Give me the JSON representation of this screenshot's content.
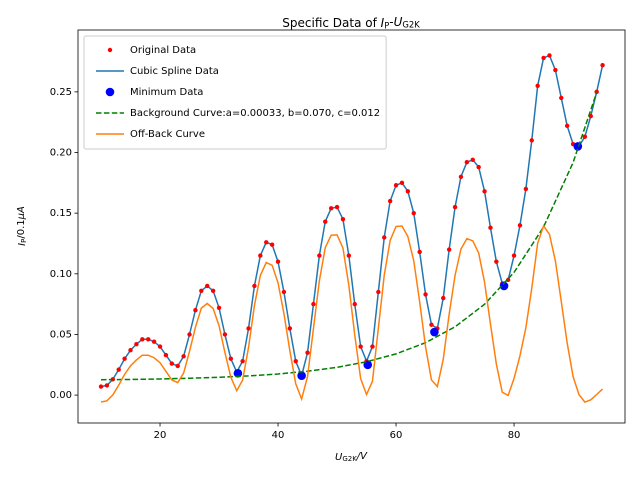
{
  "chart_data": {
    "type": "line",
    "title": [
      {
        "text": "Specific Data of "
      },
      {
        "text": "I",
        "style": "italic"
      },
      {
        "text": "P",
        "style": "sub"
      },
      {
        "text": "-"
      },
      {
        "text": "U",
        "style": "italic"
      },
      {
        "text": "G2K",
        "style": "sub"
      }
    ],
    "x_label": [
      {
        "text": "U",
        "style": "italic"
      },
      {
        "text": "G2K",
        "style": "sub"
      },
      {
        "text": "/V",
        "style": "italic"
      }
    ],
    "y_label": [
      {
        "text": "I",
        "style": "italic"
      },
      {
        "text": "P",
        "style": "sub"
      },
      {
        "text": "/0.1"
      },
      {
        "text": "μA",
        "style": "italic"
      }
    ],
    "xlim": [
      6.1,
      98.8
    ],
    "ylim": [
      -0.023,
      0.301
    ],
    "xticks": [
      20,
      40,
      60,
      80
    ],
    "yticks": [
      {
        "value": 0,
        "label": "0.00"
      },
      {
        "value": 0.05,
        "label": "0.05"
      },
      {
        "value": 0.1,
        "label": "0.10"
      },
      {
        "value": 0.15,
        "label": "0.15"
      },
      {
        "value": 0.2,
        "label": "0.20"
      },
      {
        "value": 0.25,
        "label": "0.25"
      }
    ],
    "legend": "upper left",
    "series": [
      {
        "name": "Original Data",
        "color": "#ff0000",
        "style": "dots",
        "x": [
          10,
          11,
          12,
          13,
          14,
          15,
          16,
          17,
          18,
          19,
          20,
          21,
          22,
          23,
          24,
          25,
          26,
          27,
          28,
          29,
          30,
          31,
          32,
          33,
          34,
          35,
          36,
          37,
          38,
          39,
          40,
          41,
          42,
          43,
          44,
          45,
          46,
          47,
          48,
          49,
          50,
          51,
          52,
          53,
          54,
          55,
          56,
          57,
          58,
          59,
          60,
          61,
          62,
          63,
          64,
          65,
          66,
          67,
          68,
          69,
          70,
          71,
          72,
          73,
          74,
          75,
          76,
          77,
          78,
          79,
          80,
          81,
          82,
          83,
          84,
          85,
          86,
          87,
          88,
          89,
          90,
          91,
          92,
          93,
          94,
          95
        ],
        "values": [
          0.007,
          0.008,
          0.013,
          0.021,
          0.03,
          0.037,
          0.042,
          0.046,
          0.046,
          0.044,
          0.04,
          0.033,
          0.026,
          0.024,
          0.032,
          0.05,
          0.07,
          0.086,
          0.09,
          0.086,
          0.072,
          0.05,
          0.03,
          0.019,
          0.028,
          0.055,
          0.09,
          0.115,
          0.126,
          0.124,
          0.11,
          0.085,
          0.055,
          0.028,
          0.016,
          0.035,
          0.075,
          0.115,
          0.143,
          0.154,
          0.155,
          0.145,
          0.115,
          0.075,
          0.04,
          0.028,
          0.04,
          0.085,
          0.13,
          0.16,
          0.173,
          0.175,
          0.168,
          0.15,
          0.118,
          0.083,
          0.058,
          0.055,
          0.08,
          0.12,
          0.155,
          0.18,
          0.192,
          0.194,
          0.188,
          0.168,
          0.138,
          0.11,
          0.092,
          0.095,
          0.115,
          0.14,
          0.17,
          0.21,
          0.255,
          0.278,
          0.28,
          0.268,
          0.245,
          0.222,
          0.207,
          0.205,
          0.213,
          0.23,
          0.25,
          0.272
        ]
      },
      {
        "name": "Cubic Spline Data",
        "color": "#1f77b4",
        "style": "line",
        "x": [
          10,
          11,
          12,
          13,
          14,
          15,
          16,
          17,
          18,
          19,
          20,
          21,
          22,
          23,
          24,
          25,
          26,
          27,
          28,
          29,
          30,
          31,
          32,
          33,
          34,
          35,
          36,
          37,
          38,
          39,
          40,
          41,
          42,
          43,
          44,
          45,
          46,
          47,
          48,
          49,
          50,
          51,
          52,
          53,
          54,
          55,
          56,
          57,
          58,
          59,
          60,
          61,
          62,
          63,
          64,
          65,
          66,
          67,
          68,
          69,
          70,
          71,
          72,
          73,
          74,
          75,
          76,
          77,
          78,
          79,
          80,
          81,
          82,
          83,
          84,
          85,
          86,
          87,
          88,
          89,
          90,
          91,
          92,
          93,
          94,
          95
        ],
        "values": [
          0.007,
          0.008,
          0.013,
          0.021,
          0.03,
          0.037,
          0.042,
          0.046,
          0.046,
          0.044,
          0.04,
          0.033,
          0.026,
          0.024,
          0.032,
          0.05,
          0.07,
          0.086,
          0.09,
          0.086,
          0.072,
          0.05,
          0.03,
          0.019,
          0.028,
          0.055,
          0.09,
          0.115,
          0.126,
          0.124,
          0.11,
          0.085,
          0.055,
          0.028,
          0.016,
          0.035,
          0.075,
          0.115,
          0.143,
          0.154,
          0.155,
          0.145,
          0.115,
          0.075,
          0.04,
          0.028,
          0.04,
          0.085,
          0.13,
          0.16,
          0.173,
          0.175,
          0.168,
          0.15,
          0.118,
          0.083,
          0.058,
          0.055,
          0.08,
          0.12,
          0.155,
          0.18,
          0.192,
          0.194,
          0.188,
          0.168,
          0.138,
          0.11,
          0.092,
          0.095,
          0.115,
          0.14,
          0.17,
          0.21,
          0.255,
          0.278,
          0.28,
          0.268,
          0.245,
          0.222,
          0.207,
          0.205,
          0.213,
          0.23,
          0.25,
          0.272
        ]
      },
      {
        "name": "Minimum Data",
        "color": "#0000ff",
        "style": "bigdots",
        "x": [
          33.2,
          44,
          55.2,
          66.5,
          78.3,
          90.8
        ],
        "values": [
          0.018,
          0.016,
          0.025,
          0.052,
          0.09,
          0.205
        ]
      },
      {
        "name": "Background Curve:a=0.00033, b=0.070, c=0.012",
        "color": "#008000",
        "style": "dashed",
        "x": [
          10,
          15,
          20,
          25,
          30,
          35,
          40,
          45,
          50,
          55,
          60,
          65,
          70,
          75,
          80,
          85,
          90,
          94
        ],
        "values": [
          0.0127,
          0.0129,
          0.0133,
          0.0139,
          0.0147,
          0.0158,
          0.0174,
          0.0197,
          0.0229,
          0.0275,
          0.034,
          0.0432,
          0.0563,
          0.0749,
          0.1012,
          0.1386,
          0.1917,
          0.2495
        ]
      },
      {
        "name": "Off-Back Curve",
        "color": "#ff7f0e",
        "style": "line",
        "x": [
          10,
          11,
          12,
          13,
          14,
          15,
          16,
          17,
          18,
          19,
          20,
          21,
          22,
          23,
          24,
          25,
          26,
          27,
          28,
          29,
          30,
          31,
          32,
          33,
          34,
          35,
          36,
          37,
          38,
          39,
          40,
          41,
          42,
          43,
          44,
          45,
          46,
          47,
          48,
          49,
          50,
          51,
          52,
          53,
          54,
          55,
          56,
          57,
          58,
          59,
          60,
          61,
          62,
          63,
          64,
          65,
          66,
          67,
          68,
          69,
          70,
          71,
          72,
          73,
          74,
          75,
          76,
          77,
          78,
          79,
          80,
          81,
          82,
          83,
          84,
          85,
          86,
          87,
          88,
          89,
          90,
          91,
          92,
          93,
          94,
          95
        ],
        "values": [
          -0.0057,
          -0.0047,
          0.0002,
          0.0082,
          0.0171,
          0.0241,
          0.029,
          0.0329,
          0.0329,
          0.0308,
          0.0267,
          0.0196,
          0.0125,
          0.0103,
          0.0182,
          0.0361,
          0.0559,
          0.0717,
          0.0755,
          0.0714,
          0.0573,
          0.035,
          0.0148,
          0.0036,
          0.0124,
          0.0392,
          0.0739,
          0.0986,
          0.1093,
          0.107,
          0.0926,
          0.0672,
          0.0367,
          0.0093,
          -0.0032,
          0.0153,
          0.0547,
          0.0941,
          0.1215,
          0.1318,
          0.1321,
          0.1213,
          0.0905,
          0.0496,
          0.0136,
          0.0005,
          0.0114,
          0.0552,
          0.0989,
          0.1275,
          0.139,
          0.1394,
          0.1307,
          0.1108,
          0.0769,
          0.0398,
          0.0125,
          0.0071,
          0.0295,
          0.0667,
          0.0987,
          0.1204,
          0.129,
          0.1272,
          0.1172,
          0.0931,
          0.0585,
          0.0255,
          0.0023,
          -0.0003,
          0.0138,
          0.0324,
          0.0555,
          0.0881,
          0.1252,
          0.1396,
          0.1325,
          0.1107,
          0.0772,
          0.0429,
          0.0153,
          0.0004,
          -0.0058,
          -0.0039,
          0.0005,
          0.005
        ]
      }
    ]
  }
}
